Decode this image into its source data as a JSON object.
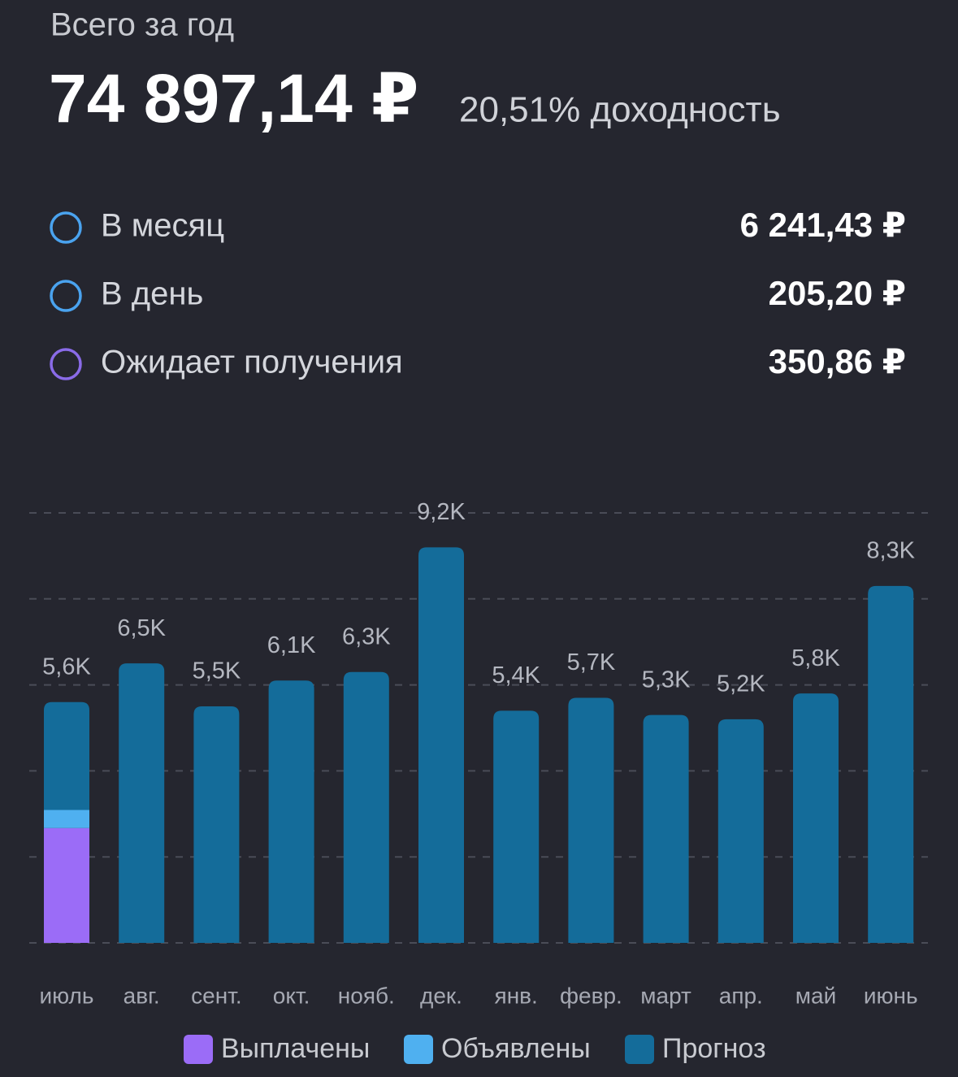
{
  "header": {
    "title": "Всего за год",
    "total": "74 897,14 ₽",
    "yield": "20,51% доходность"
  },
  "summary": [
    {
      "label": "В месяц",
      "value": "6 241,43 ₽",
      "color": "#4aa3ef"
    },
    {
      "label": "В день",
      "value": "205,20 ₽",
      "color": "#4aa3ef"
    },
    {
      "label": "Ожидает получения",
      "value": "350,86 ₽",
      "color": "#8a6be8"
    }
  ],
  "chart_data": {
    "type": "stacked_bar",
    "categories": [
      "июль",
      "авг.",
      "сент.",
      "окт.",
      "нояб.",
      "дек.",
      "янв.",
      "февр.",
      "март",
      "апр.",
      "май",
      "июнь"
    ],
    "series": [
      {
        "name": "Выплачены",
        "color": "#9b6cf7",
        "values": [
          2670,
          0,
          0,
          0,
          0,
          0,
          0,
          0,
          0,
          0,
          0,
          0
        ]
      },
      {
        "name": "Объявлены",
        "color": "#4fb0f0",
        "values": [
          420,
          0,
          0,
          0,
          0,
          0,
          0,
          0,
          0,
          0,
          0,
          0
        ]
      },
      {
        "name": "Прогноз",
        "color": "#146c9a",
        "values": [
          2510,
          6500,
          5500,
          6100,
          6300,
          9200,
          5400,
          5700,
          5300,
          5200,
          5800,
          8300
        ]
      }
    ],
    "value_labels": [
      "5,6K",
      "6,5K",
      "5,5K",
      "6,1K",
      "6,3K",
      "9,2K",
      "5,4K",
      "5,7K",
      "5,3K",
      "5,2K",
      "5,8K",
      "8,3K"
    ],
    "ylim": [
      0,
      10000
    ],
    "yticks": [
      0,
      2000,
      4000,
      6000,
      8000,
      10000
    ],
    "grid": true
  }
}
